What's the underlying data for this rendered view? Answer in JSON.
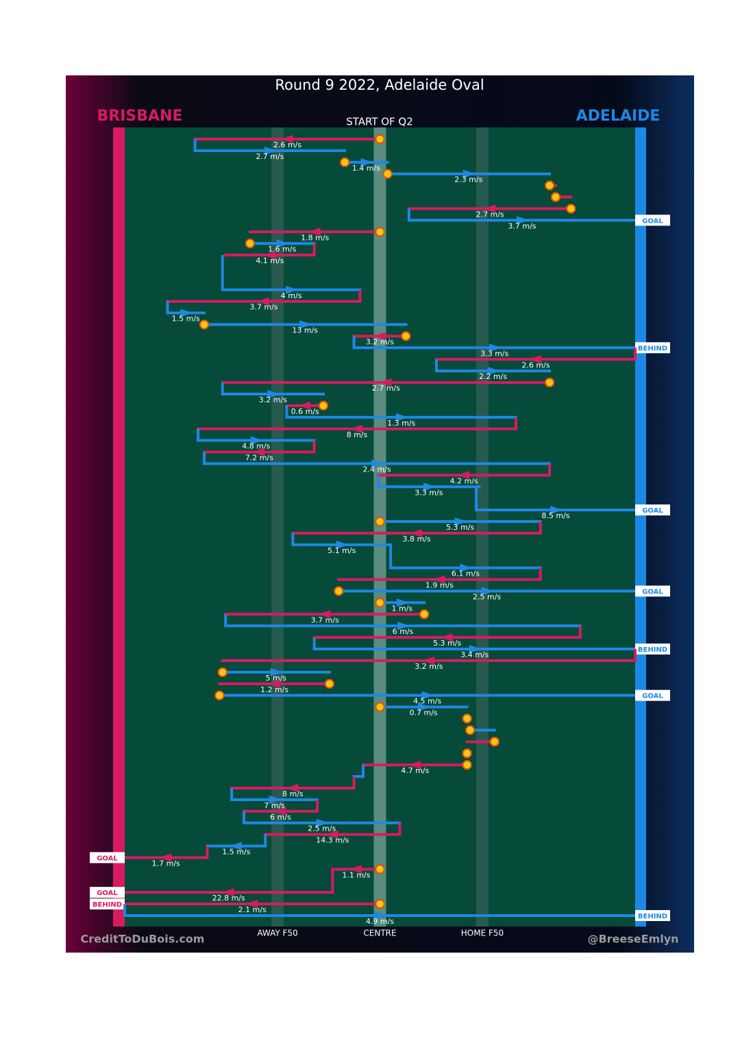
{
  "chart_data": {
    "type": "chain",
    "title": "Round 9 2022, Adelaide Oval",
    "subtitle": "START OF Q2",
    "credit_left": "CreditToDuBois.com",
    "credit_right": "@BreeseEmlyn",
    "teams": [
      {
        "name": "BRISBANE",
        "color": "#d81b60"
      },
      {
        "name": "ADELAIDE",
        "color": "#1e88e5"
      }
    ],
    "xlim": [
      0,
      167
    ],
    "xticks": [
      {
        "value": 50,
        "label": "AWAY F50"
      },
      {
        "value": 83.5,
        "label": "CENTRE"
      },
      {
        "value": 117,
        "label": "HOME F50"
      }
    ],
    "segments": [
      {
        "team": 0,
        "row": 0,
        "from": 83.5,
        "to": 23,
        "speed": 2.6,
        "speed_label": "2.6 m/s",
        "stoppage": true
      },
      {
        "team": 1,
        "row": 1,
        "from": 23,
        "to": 72,
        "speed": 2.7,
        "speed_label": "2.7 m/s"
      },
      {
        "team": 1,
        "row": 2,
        "from": 72,
        "to": 86,
        "speed": 1.4,
        "speed_label": "1.4 m/s",
        "stoppage": true
      },
      {
        "team": 1,
        "row": 3,
        "from": 86,
        "to": 139,
        "speed": 2.3,
        "speed_label": "2.3 m/s",
        "stoppage": true
      },
      {
        "team": 0,
        "row": 4,
        "from": 139,
        "to": 141,
        "speed": null,
        "stoppage": true
      },
      {
        "team": 0,
        "row": 5,
        "from": 141,
        "to": 146,
        "speed": null,
        "stoppage": true
      },
      {
        "team": 0,
        "row": 6,
        "from": 146,
        "to": 93,
        "speed": 2.7,
        "speed_label": "2.7 m/s",
        "stoppage": true
      },
      {
        "team": 1,
        "row": 7,
        "from": 93,
        "to": 167,
        "speed": 3.7,
        "speed_label": "3.7 m/s",
        "result": "GOAL"
      },
      {
        "team": 0,
        "row": 8,
        "from": 83.5,
        "to": 41,
        "speed": 1.8,
        "speed_label": "1.8 m/s",
        "stoppage": true
      },
      {
        "team": 1,
        "row": 9,
        "from": 41,
        "to": 62,
        "speed": 1.6,
        "speed_label": "1.6 m/s",
        "stoppage": true
      },
      {
        "team": 0,
        "row": 10,
        "from": 62,
        "to": 33,
        "speed": 4.1,
        "speed_label": "4.1 m/s"
      },
      {
        "team": 1,
        "row": 13,
        "from": 32,
        "to": 77,
        "speed": 4,
        "speed_label": "4 m/s"
      },
      {
        "team": 0,
        "row": 14,
        "from": 77,
        "to": 14,
        "speed": 3.7,
        "speed_label": "3.7 m/s"
      },
      {
        "team": 1,
        "row": 15,
        "from": 14,
        "to": 26,
        "speed": 1.5,
        "speed_label": "1.5 m/s"
      },
      {
        "team": 1,
        "row": 16,
        "from": 26,
        "to": 92,
        "speed": 13,
        "speed_label": "13 m/s",
        "stoppage": true
      },
      {
        "team": 0,
        "row": 17,
        "from": 92,
        "to": 75,
        "speed": 3.2,
        "speed_label": "3.2 m/s",
        "stoppage": true
      },
      {
        "team": 1,
        "row": 18,
        "from": 75,
        "to": 167,
        "speed": 3.3,
        "speed_label": "3.3 m/s",
        "result": "BEHIND"
      },
      {
        "team": 0,
        "row": 19,
        "from": 167,
        "to": 102,
        "speed": 2.6,
        "speed_label": "2.6 m/s"
      },
      {
        "team": 1,
        "row": 20,
        "from": 102,
        "to": 139,
        "speed": 2.2,
        "speed_label": "2.2 m/s"
      },
      {
        "team": 0,
        "row": 21,
        "from": 139,
        "to": 32,
        "speed": 2.7,
        "speed_label": "2.7 m/s",
        "stoppage": true
      },
      {
        "team": 1,
        "row": 22,
        "from": 32,
        "to": 65,
        "speed": 3.2,
        "speed_label": "3.2 m/s"
      },
      {
        "team": 0,
        "row": 23,
        "from": 65,
        "to": 53,
        "speed": 0.6,
        "speed_label": "0.6 m/s",
        "stoppage": true
      },
      {
        "team": 1,
        "row": 24,
        "from": 53,
        "to": 128,
        "speed": 1.3,
        "speed_label": "1.3 m/s"
      },
      {
        "team": 0,
        "row": 25,
        "from": 128,
        "to": 24,
        "speed": 8,
        "speed_label": "8 m/s"
      },
      {
        "team": 1,
        "row": 26,
        "from": 24,
        "to": 62,
        "speed": 4.8,
        "speed_label": "4.8 m/s"
      },
      {
        "team": 0,
        "row": 27,
        "from": 62,
        "to": 26,
        "speed": 7.2,
        "speed_label": "7.2 m/s"
      },
      {
        "team": 1,
        "row": 28,
        "from": 26,
        "to": 139,
        "speed": 2.4,
        "speed_label": "2.4 m/s"
      },
      {
        "team": 0,
        "row": 29,
        "from": 139,
        "to": 83,
        "speed": 4.2,
        "speed_label": "4.2 m/s"
      },
      {
        "team": 1,
        "row": 30,
        "from": 83,
        "to": 116,
        "speed": 3.3,
        "speed_label": "3.3 m/s"
      },
      {
        "team": 1,
        "row": 32,
        "from": 115,
        "to": 167,
        "speed": 8.5,
        "speed_label": "8.5 m/s",
        "result": "GOAL"
      },
      {
        "team": 1,
        "row": 33,
        "from": 83.5,
        "to": 136,
        "speed": 5.3,
        "speed_label": "5.3 m/s",
        "stoppage": true
      },
      {
        "team": 0,
        "row": 34,
        "from": 136,
        "to": 55,
        "speed": 3.8,
        "speed_label": "3.8 m/s"
      },
      {
        "team": 1,
        "row": 35,
        "from": 55,
        "to": 87,
        "speed": 5.1,
        "speed_label": "5.1 m/s"
      },
      {
        "team": 1,
        "row": 37,
        "from": 87,
        "to": 136,
        "speed": 6.1,
        "speed_label": "6.1 m/s"
      },
      {
        "team": 0,
        "row": 38,
        "from": 136,
        "to": 70,
        "speed": 1.9,
        "speed_label": "1.9 m/s"
      },
      {
        "team": 1,
        "row": 39,
        "from": 70,
        "to": 167,
        "speed": 2.5,
        "speed_label": "2.5 m/s",
        "stoppage": true,
        "result": "GOAL"
      },
      {
        "team": 1,
        "row": 40,
        "from": 83.5,
        "to": 98,
        "speed": 1,
        "speed_label": "1 m/s",
        "stoppage": true
      },
      {
        "team": 0,
        "row": 41,
        "from": 98,
        "to": 33,
        "speed": 3.7,
        "speed_label": "3.7 m/s",
        "stoppage": true
      },
      {
        "team": 1,
        "row": 42,
        "from": 33,
        "to": 149,
        "speed": 6,
        "speed_label": "6 m/s"
      },
      {
        "team": 0,
        "row": 43,
        "from": 149,
        "to": 62,
        "speed": 5.3,
        "speed_label": "5.3 m/s"
      },
      {
        "team": 1,
        "row": 44,
        "from": 62,
        "to": 167,
        "speed": 3.4,
        "speed_label": "3.4 m/s",
        "result": "BEHIND"
      },
      {
        "team": 0,
        "row": 45,
        "from": 167,
        "to": 32,
        "speed": 3.2,
        "speed_label": "3.2 m/s"
      },
      {
        "team": 1,
        "row": 46,
        "from": 32,
        "to": 67,
        "speed": 5,
        "speed_label": "5 m/s",
        "stoppage": true
      },
      {
        "team": 0,
        "row": 47,
        "from": 67,
        "to": 31,
        "speed": 1.2,
        "speed_label": "1.2 m/s",
        "stoppage": true
      },
      {
        "team": 1,
        "row": 48,
        "from": 31,
        "to": 167,
        "speed": 4.5,
        "speed_label": "4.5 m/s",
        "stoppage": true,
        "result": "GOAL"
      },
      {
        "team": 1,
        "row": 49,
        "from": 83.5,
        "to": 112,
        "speed": 0.7,
        "speed_label": "0.7 m/s",
        "stoppage": true
      },
      {
        "team": 1,
        "row": 50,
        "from": 112,
        "to": 112,
        "speed": null,
        "stoppage": true
      },
      {
        "team": 1,
        "row": 51,
        "from": 113,
        "to": 121,
        "speed": null,
        "stoppage": true
      },
      {
        "team": 0,
        "row": 52,
        "from": 121,
        "to": 112,
        "speed": null,
        "stoppage": true
      },
      {
        "team": 0,
        "row": 53,
        "from": 112,
        "to": 112,
        "speed": null,
        "stoppage": true
      },
      {
        "team": 0,
        "row": 54,
        "from": 112,
        "to": 78,
        "speed": 4.7,
        "speed_label": "4.7 m/s",
        "stoppage": true
      },
      {
        "team": 1,
        "row": 55,
        "from": 78,
        "to": 75,
        "speed": null
      },
      {
        "team": 0,
        "row": 56,
        "from": 75,
        "to": 35,
        "speed": 8,
        "speed_label": "8 m/s"
      },
      {
        "team": 1,
        "row": 57,
        "from": 35,
        "to": 63,
        "speed": 7,
        "speed_label": "7 m/s"
      },
      {
        "team": 0,
        "row": 58,
        "from": 63,
        "to": 39,
        "speed": 6,
        "speed_label": "6 m/s"
      },
      {
        "team": 1,
        "row": 59,
        "from": 39,
        "to": 90,
        "speed": 2.5,
        "speed_label": "2.5 m/s"
      },
      {
        "team": 0,
        "row": 60,
        "from": 90,
        "to": 46,
        "speed": 14.3,
        "speed_label": "14.3 m/s"
      },
      {
        "team": 1,
        "row": 61,
        "from": 46,
        "to": 27,
        "speed": 1.5,
        "speed_label": "1.5 m/s"
      },
      {
        "team": 0,
        "row": 62,
        "from": 27,
        "to": 0,
        "speed": 1.7,
        "speed_label": "1.7 m/s",
        "result": "GOAL"
      },
      {
        "team": 0,
        "row": 63,
        "from": 83.5,
        "to": 68,
        "speed": 1.1,
        "speed_label": "1.1 m/s",
        "stoppage": true
      },
      {
        "team": 0,
        "row": 65,
        "from": 68,
        "to": 0,
        "speed": 22.8,
        "speed_label": "22.8 m/s",
        "result": "GOAL"
      },
      {
        "team": 0,
        "row": 66,
        "from": 83.5,
        "to": 0,
        "speed": 2.1,
        "speed_label": "2.1 m/s",
        "stoppage": true,
        "result": "BEHIND"
      },
      {
        "team": 1,
        "row": 67,
        "from": 0,
        "to": 167,
        "speed": 4.9,
        "speed_label": "4.9 m/s",
        "result": "BEHIND"
      }
    ]
  }
}
